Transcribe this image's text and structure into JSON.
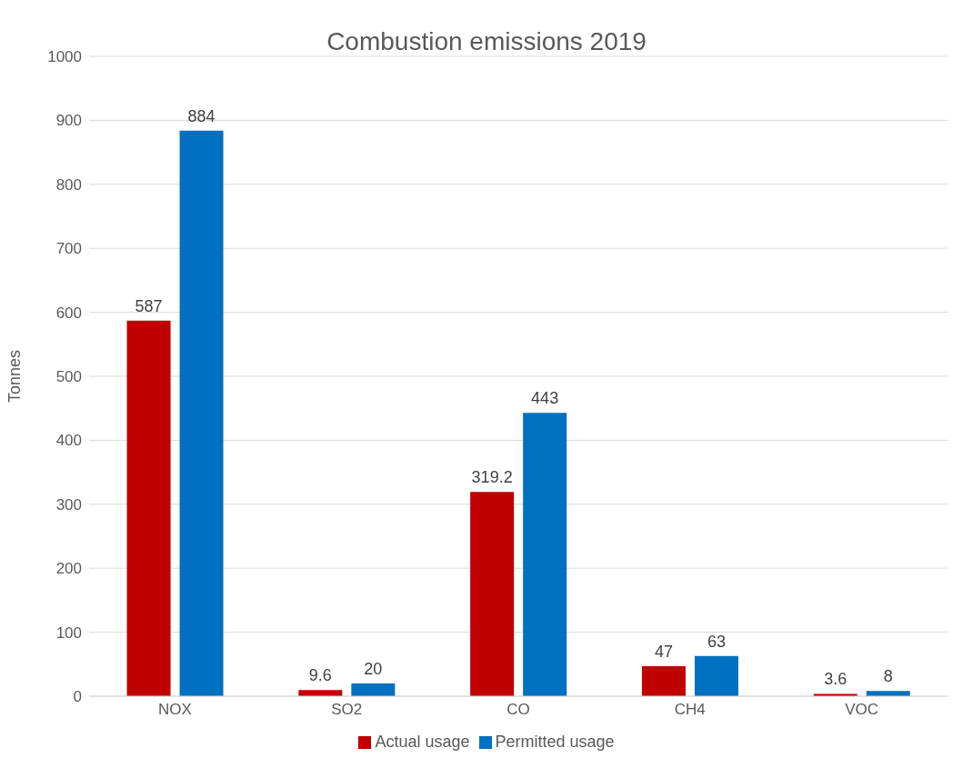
{
  "chart_data": {
    "type": "bar",
    "title": "Combustion emissions 2019",
    "ylabel": "Tonnes",
    "categories": [
      "NOX",
      "SO2",
      "CO",
      "CH4",
      "VOC"
    ],
    "series": [
      {
        "name": "Actual usage",
        "color": "#c00000",
        "values": [
          587,
          9.6,
          319.2,
          47,
          3.6
        ]
      },
      {
        "name": "Permitted usage",
        "color": "#0070c0",
        "values": [
          884,
          20,
          443,
          63,
          8
        ]
      }
    ],
    "ylim": [
      0,
      1000
    ],
    "yticks": [
      0,
      100,
      200,
      300,
      400,
      500,
      600,
      700,
      800,
      900,
      1000
    ],
    "grid": "y",
    "legend": "bottom",
    "data_labels": true
  }
}
